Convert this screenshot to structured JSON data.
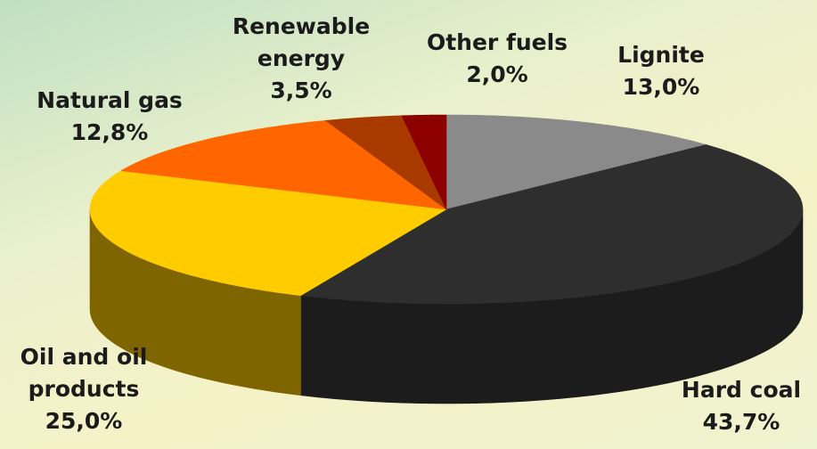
{
  "chart_data": {
    "type": "pie",
    "title": "",
    "slices": [
      {
        "name": "Lignite",
        "value": 13.0,
        "value_label": "13,0%",
        "color": "#8a8a8a",
        "side": "#5a5a5a"
      },
      {
        "name": "Hard coal",
        "value": 43.7,
        "value_label": "43,7%",
        "color": "#2e2e2e",
        "side": "#1c1c1c"
      },
      {
        "name": "Oil and oil products",
        "value": 25.0,
        "value_label": "25,0%",
        "color": "#ffcc00",
        "side": "#7f6500"
      },
      {
        "name": "Natural gas",
        "value": 12.8,
        "value_label": "12,8%",
        "color": "#ff6600",
        "side": "#a84300"
      },
      {
        "name": "Renewable energy",
        "value": 3.5,
        "value_label": "3,5%",
        "color": "#a83a00",
        "side": "#6a2400"
      },
      {
        "name": "Other fuels",
        "value": 2.0,
        "value_label": "2,0%",
        "color": "#8c0000",
        "side": "#560000"
      }
    ],
    "labels": {
      "lignite": [
        "Lignite",
        "13,0%"
      ],
      "hard_coal": [
        "Hard coal",
        "43,7%"
      ],
      "oil": [
        "Oil and oil",
        "products",
        "25,0%"
      ],
      "natural_gas": [
        "Natural gas",
        "12,8%"
      ],
      "renewable": [
        "Renewable",
        "energy",
        "3,5%"
      ],
      "other": [
        "Other fuels",
        "2,0%"
      ]
    },
    "style": "3d-pie"
  }
}
